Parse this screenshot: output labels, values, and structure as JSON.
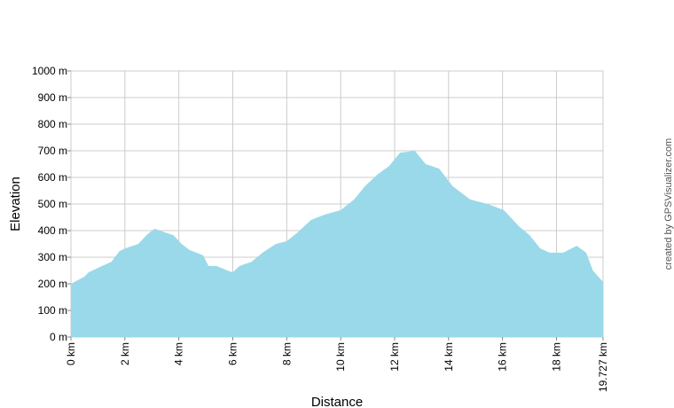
{
  "chart_data": {
    "type": "area",
    "x_label": "Distance",
    "y_label": "Elevation",
    "annotation": "created by GPSVisualizer.com",
    "color": "#9ad9e9",
    "grid": true,
    "xlim": [
      0,
      19.727
    ],
    "ylim": [
      0,
      1000
    ],
    "xticks": [
      {
        "value": 0,
        "label": "0 km"
      },
      {
        "value": 2,
        "label": "2 km"
      },
      {
        "value": 4,
        "label": "4 km"
      },
      {
        "value": 6,
        "label": "6 km"
      },
      {
        "value": 8,
        "label": "8 km"
      },
      {
        "value": 10,
        "label": "10 km"
      },
      {
        "value": 12,
        "label": "12 km"
      },
      {
        "value": 14,
        "label": "14 km"
      },
      {
        "value": 16,
        "label": "16 km"
      },
      {
        "value": 18,
        "label": "18 km"
      },
      {
        "value": 19.727,
        "label": "19.727 km"
      }
    ],
    "yticks": [
      {
        "value": 0,
        "label": "0 m"
      },
      {
        "value": 100,
        "label": "100 m"
      },
      {
        "value": 200,
        "label": "200 m"
      },
      {
        "value": 300,
        "label": "300 m"
      },
      {
        "value": 400,
        "label": "400 m"
      },
      {
        "value": 500,
        "label": "500 m"
      },
      {
        "value": 600,
        "label": "600 m"
      },
      {
        "value": 700,
        "label": "700 m"
      },
      {
        "value": 800,
        "label": "800 m"
      },
      {
        "value": 900,
        "label": "900 m"
      },
      {
        "value": 1000,
        "label": "1000 m"
      }
    ],
    "x": [
      0,
      0.5,
      0.65,
      1,
      1.5,
      1.8,
      2,
      2.5,
      2.8,
      3.1,
      3.5,
      3.8,
      4.1,
      4.4,
      4.9,
      5.1,
      5.4,
      5.8,
      6,
      6.25,
      6.7,
      7.1,
      7.6,
      8,
      8.4,
      8.9,
      9.4,
      10,
      10.5,
      10.9,
      11.35,
      11.8,
      12.2,
      12.75,
      13.15,
      13.65,
      14.15,
      14.8,
      15.45,
      16.05,
      16.6,
      17,
      17.4,
      17.75,
      18.25,
      18.75,
      19.1,
      19.35,
      19.727
    ],
    "values": [
      200,
      227,
      243,
      260,
      283,
      323,
      333,
      350,
      383,
      407,
      393,
      383,
      350,
      327,
      307,
      267,
      267,
      250,
      243,
      267,
      283,
      317,
      350,
      360,
      393,
      440,
      460,
      477,
      517,
      567,
      610,
      643,
      693,
      700,
      650,
      633,
      567,
      517,
      500,
      477,
      417,
      383,
      333,
      317,
      317,
      343,
      317,
      250,
      207
    ]
  }
}
